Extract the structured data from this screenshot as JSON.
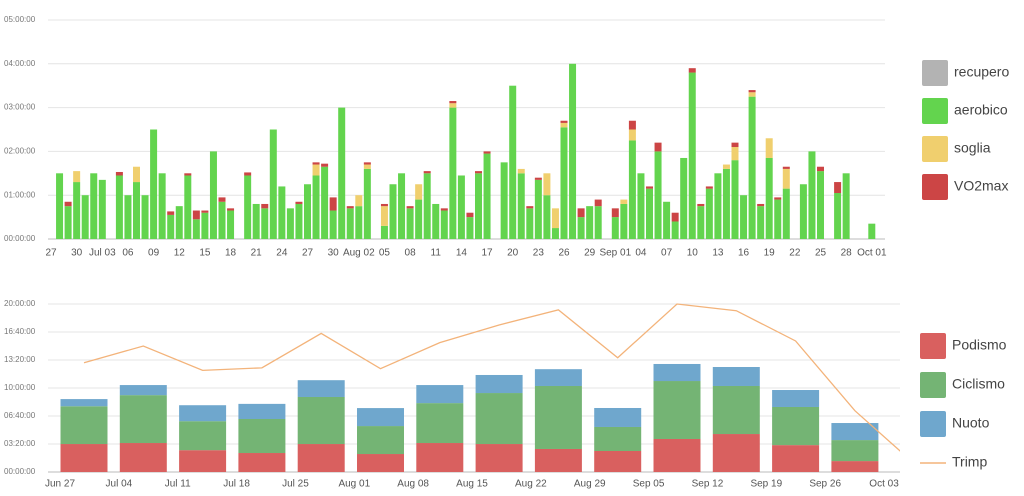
{
  "chart_data": [
    {
      "type": "bar",
      "stacked": true,
      "categories": [
        "27",
        null,
        null,
        "30",
        null,
        null,
        "Jul 03",
        null,
        null,
        "06",
        null,
        null,
        "09",
        null,
        null,
        "12",
        null,
        null,
        "15",
        null,
        null,
        "18",
        null,
        null,
        "21",
        null,
        null,
        "24",
        null,
        null,
        "27",
        null,
        null,
        "30",
        null,
        null,
        "Aug 02",
        null,
        null,
        "05",
        null,
        null,
        "08",
        null,
        null,
        "11",
        null,
        null,
        "14",
        null,
        null,
        "17",
        null,
        null,
        "20",
        null,
        null,
        "23",
        null,
        null,
        "26",
        null,
        null,
        "29",
        null,
        null,
        "Sep 01",
        null,
        null,
        "04",
        null,
        null,
        "07",
        null,
        null,
        "10",
        null,
        null,
        "13",
        null,
        null,
        "16",
        null,
        null,
        "19",
        null,
        null,
        "22",
        null,
        null,
        "25",
        null,
        null,
        "28",
        null,
        null,
        "Oct 01"
      ],
      "ylim": [
        0,
        5
      ],
      "yticks": [
        {
          "value": 0,
          "label": "00:00:00"
        },
        {
          "value": 1,
          "label": "01:00:00"
        },
        {
          "value": 2,
          "label": "02:00:00"
        },
        {
          "value": 3,
          "label": "03:00:00"
        },
        {
          "value": 4,
          "label": "04:00:00"
        },
        {
          "value": 5,
          "label": "05:00:00"
        }
      ],
      "grid": true,
      "series": [
        {
          "name": "recupero",
          "color": "#b3b3b3",
          "values": [
            0,
            0,
            0,
            0,
            0,
            0,
            0,
            0,
            0,
            0,
            0,
            0,
            0,
            0,
            0,
            0,
            0,
            0,
            0,
            0,
            0,
            0,
            0,
            0,
            0,
            0,
            0,
            0,
            0,
            0,
            0,
            0,
            0,
            0,
            0,
            0,
            0,
            0,
            0,
            0,
            0,
            0,
            0,
            0,
            0,
            0,
            0,
            0,
            0,
            0,
            0,
            0,
            0,
            0,
            0,
            0,
            0,
            0,
            0,
            0,
            0,
            0,
            0,
            0,
            0,
            0,
            0,
            0,
            0,
            0,
            0,
            0,
            0,
            0,
            0,
            0,
            0,
            0,
            0,
            0,
            0,
            0,
            0,
            0,
            0,
            0,
            0,
            0,
            0,
            0,
            0,
            0,
            0,
            0,
            0,
            0,
            0
          ]
        },
        {
          "name": "aerobico",
          "color": "#63d44e",
          "values": [
            0,
            1.5,
            0.75,
            1.3,
            1.0,
            1.5,
            1.35,
            0,
            1.45,
            1.0,
            1.3,
            1.0,
            2.5,
            1.5,
            0.55,
            0.75,
            1.45,
            0.45,
            0.6,
            2.0,
            0.85,
            0.65,
            0,
            1.45,
            0.8,
            0.7,
            2.5,
            1.2,
            0.7,
            0.8,
            1.25,
            1.45,
            1.65,
            0.65,
            3.0,
            0.7,
            0.75,
            1.6,
            0,
            0.3,
            1.25,
            1.5,
            0.7,
            0.9,
            1.5,
            0.8,
            0.65,
            3.0,
            1.45,
            0.5,
            1.5,
            1.95,
            0,
            1.75,
            3.5,
            1.5,
            0.7,
            1.35,
            1.0,
            0.25,
            2.55,
            4.0,
            0.5,
            0.75,
            0.75,
            0,
            0.5,
            0.8,
            2.25,
            1.5,
            1.15,
            2.0,
            0.85,
            0.4,
            1.85,
            3.8,
            0.75,
            1.15,
            1.5,
            1.6,
            1.8,
            1.0,
            3.25,
            0.75,
            1.85,
            0.9,
            1.15,
            0,
            1.25,
            2.0,
            1.55,
            0,
            1.05,
            1.5,
            0,
            0,
            0.35
          ]
        },
        {
          "name": "soglia",
          "color": "#f0cf6e",
          "values": [
            0,
            0,
            0,
            0.25,
            0,
            0,
            0,
            0,
            0,
            0,
            0.35,
            0,
            0,
            0,
            0,
            0,
            0,
            0,
            0,
            0,
            0,
            0,
            0,
            0,
            0,
            0,
            0,
            0,
            0,
            0,
            0,
            0.25,
            0,
            0,
            0,
            0,
            0.25,
            0.1,
            0,
            0.45,
            0,
            0,
            0,
            0.35,
            0,
            0,
            0,
            0.1,
            0,
            0,
            0,
            0,
            0,
            0,
            0,
            0.1,
            0,
            0,
            0.5,
            0.45,
            0.1,
            0,
            0,
            0,
            0,
            0,
            0,
            0.1,
            0.25,
            0,
            0,
            0,
            0,
            0,
            0,
            0,
            0,
            0,
            0,
            0.1,
            0.3,
            0,
            0.1,
            0,
            0.45,
            0,
            0.45,
            0,
            0,
            0,
            0,
            0,
            0,
            0,
            0,
            0,
            0
          ]
        },
        {
          "name": "VO2max",
          "color": "#cc4545",
          "values": [
            0,
            0,
            0.1,
            0,
            0,
            0,
            0,
            0,
            0.08,
            0,
            0,
            0,
            0,
            0,
            0.08,
            0,
            0.05,
            0.2,
            0.05,
            0,
            0.1,
            0.05,
            0,
            0.07,
            0,
            0.1,
            0,
            0,
            0,
            0.05,
            0,
            0.05,
            0.07,
            0.3,
            0,
            0.05,
            0,
            0.05,
            0,
            0.05,
            0,
            0,
            0.05,
            0,
            0.05,
            0,
            0.05,
            0.05,
            0,
            0.1,
            0.05,
            0.05,
            0,
            0,
            0,
            0,
            0.05,
            0.05,
            0,
            0,
            0.05,
            0,
            0.2,
            0,
            0.15,
            0,
            0.2,
            0,
            0.2,
            0,
            0.05,
            0.2,
            0,
            0.2,
            0,
            0.1,
            0.05,
            0.05,
            0,
            0,
            0.1,
            0,
            0.05,
            0.05,
            0,
            0.05,
            0.05,
            0,
            0,
            0,
            0.1,
            0,
            0.25,
            0,
            0,
            0,
            0
          ]
        }
      ]
    },
    {
      "type": "bar",
      "stacked": true,
      "xticks": [
        "Jun 27",
        "Jul 04",
        "Jul 11",
        "Jul 18",
        "Jul 25",
        "Aug 01",
        "Aug 08",
        "Aug 15",
        "Aug 22",
        "Aug 29",
        "Sep 05",
        "Sep 12",
        "Sep 19",
        "Sep 26",
        "Oct 03"
      ],
      "ylim": [
        0,
        20
      ],
      "yticks": [
        {
          "value": 0,
          "label": "00:00:00"
        },
        {
          "value": 3.3333333,
          "label": "03:20:00"
        },
        {
          "value": 6.6666667,
          "label": "06:40:00"
        },
        {
          "value": 10,
          "label": "10:00:00"
        },
        {
          "value": 13.3333333,
          "label": "13:20:00"
        },
        {
          "value": 16.6666667,
          "label": "16:40:00"
        },
        {
          "value": 20,
          "label": "20:00:00"
        }
      ],
      "grid": true,
      "series": [
        {
          "name": "Podismo",
          "color": "#d9605f",
          "values": [
            3.33,
            3.45,
            2.6,
            2.26,
            3.33,
            2.14,
            3.45,
            3.33,
            2.74,
            2.5,
            3.93,
            4.52,
            3.2,
            1.3
          ]
        },
        {
          "name": "Ciclismo",
          "color": "#74b474",
          "values": [
            4.5,
            5.7,
            3.45,
            4.05,
            5.6,
            3.33,
            4.75,
            6.07,
            7.5,
            2.86,
            6.9,
            5.72,
            4.54,
            2.5
          ]
        },
        {
          "name": "Nuoto",
          "color": "#6fa7cd",
          "values": [
            0.85,
            1.2,
            1.9,
            1.8,
            2.0,
            2.14,
            2.15,
            2.15,
            2.0,
            2.26,
            2.03,
            2.26,
            2.02,
            2.03
          ]
        },
        {
          "name": "Trimp",
          "type": "line",
          "color": "#f3b37a",
          "values": [
            13.0,
            15.0,
            12.1,
            12.4,
            16.5,
            12.3,
            15.4,
            17.5,
            19.3,
            13.6,
            20.0,
            19.2,
            15.6,
            7.3,
            1.0
          ]
        }
      ]
    }
  ]
}
